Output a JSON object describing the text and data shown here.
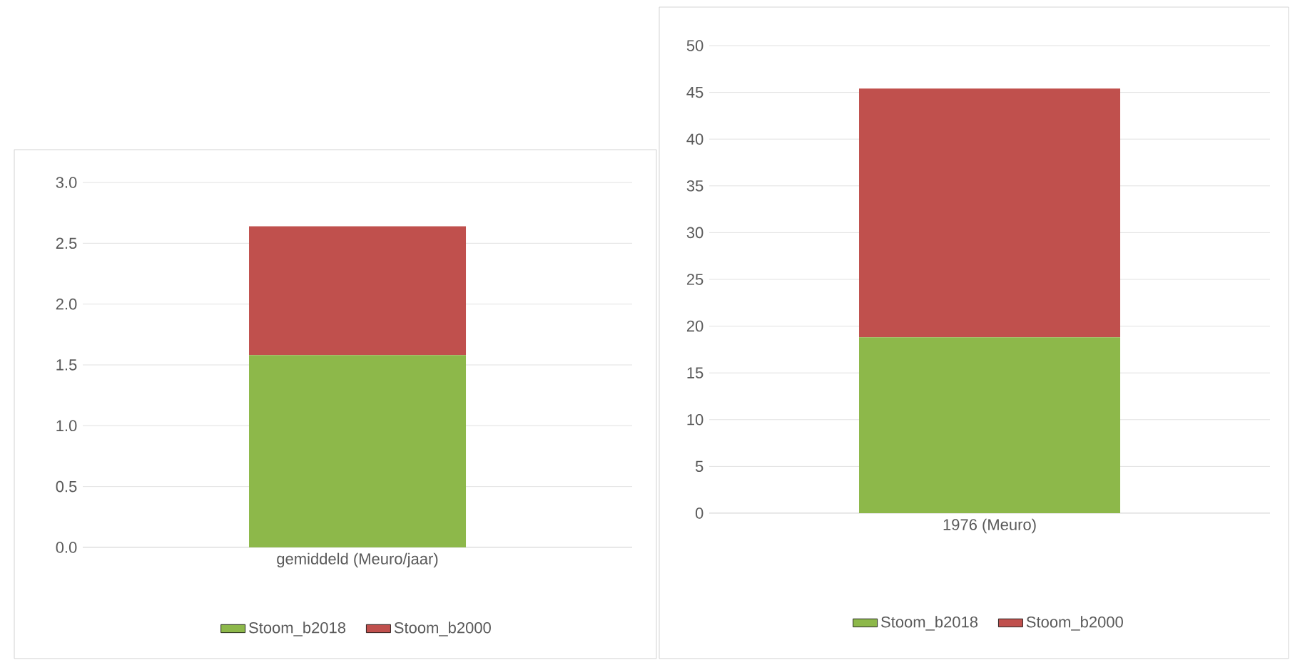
{
  "chart_data": [
    {
      "type": "bar",
      "stacked": true,
      "categories": [
        "gemiddeld (Meuro/jaar)"
      ],
      "series": [
        {
          "name": "Stoom_b2018",
          "color": "#8db84a",
          "values": [
            1.58
          ]
        },
        {
          "name": "Stoom_b2000",
          "color": "#c0504d",
          "values": [
            1.06
          ]
        }
      ],
      "ylim": [
        0,
        3
      ],
      "yticks": [
        {
          "value": 0,
          "label": "0.0"
        },
        {
          "value": 0.5,
          "label": "0.5"
        },
        {
          "value": 1,
          "label": "1.0"
        },
        {
          "value": 1.5,
          "label": "1.5"
        },
        {
          "value": 2,
          "label": "2.0"
        },
        {
          "value": 2.5,
          "label": "2.5"
        },
        {
          "value": 3,
          "label": "3.0"
        }
      ],
      "grid": "y",
      "legend": "bottom"
    },
    {
      "type": "bar",
      "stacked": true,
      "categories": [
        "1976 (Meuro)"
      ],
      "series": [
        {
          "name": "Stoom_b2018",
          "color": "#8db84a",
          "values": [
            18.8
          ]
        },
        {
          "name": "Stoom_b2000",
          "color": "#c0504d",
          "values": [
            26.6
          ]
        }
      ],
      "ylim": [
        0,
        50
      ],
      "yticks": [
        0,
        5,
        10,
        15,
        20,
        25,
        30,
        35,
        40,
        45,
        50
      ],
      "grid": "y",
      "legend": "bottom"
    }
  ]
}
